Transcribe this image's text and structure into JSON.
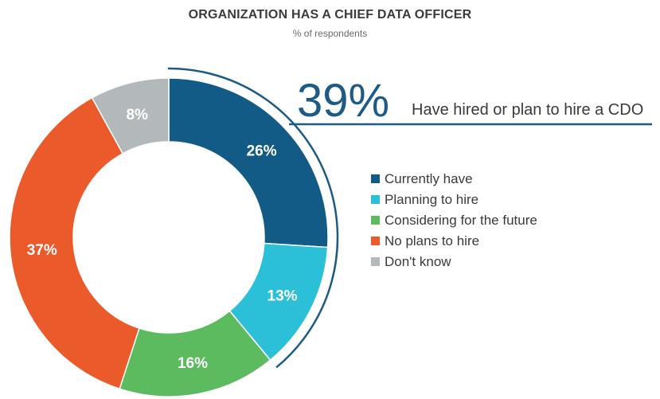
{
  "title": "ORGANIZATION HAS A CHIEF DATA OFFICER",
  "subtitle": "% of respondents",
  "callout": {
    "value": "39%",
    "text": "Have hired or plan to hire a CDO"
  },
  "chart_data": {
    "type": "pie",
    "donut": true,
    "title": "ORGANIZATION HAS A CHIEF DATA OFFICER",
    "subtitle": "% of respondents",
    "legend_position": "right",
    "categories": [
      "Currently have",
      "Planning to hire",
      "Considering for the future",
      "No plans to hire",
      "Don't know"
    ],
    "values": [
      26,
      13,
      16,
      37,
      8
    ],
    "labels": [
      "26%",
      "13%",
      "16%",
      "37%",
      "8%"
    ],
    "colors": [
      "#135b87",
      "#2cc0d8",
      "#5cbb5f",
      "#eb5a2b",
      "#b3b8ba"
    ],
    "unit": "%"
  }
}
